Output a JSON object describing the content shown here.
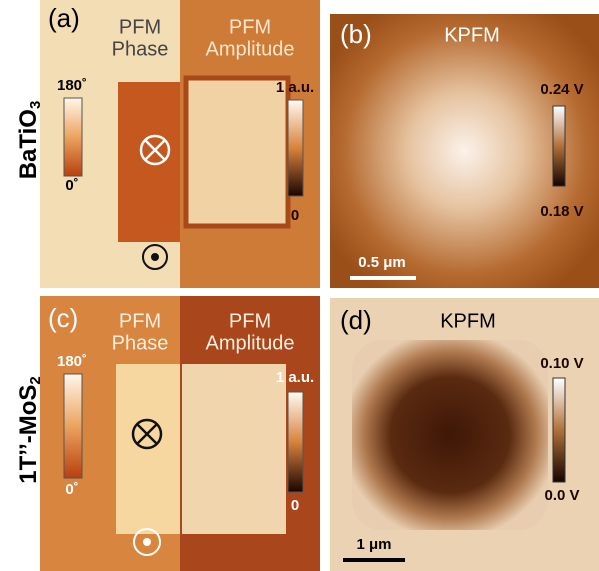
{
  "row_labels": [
    {
      "text": "BaTiO",
      "sub": "3"
    },
    {
      "text": "1T’’-MoS",
      "sub": "2"
    }
  ],
  "panels": [
    {
      "label": "(a)",
      "left_title": [
        "PFM",
        "Phase"
      ],
      "right_title": [
        "PFM",
        "Amplitude"
      ],
      "left_bar": [
        "180˚",
        "0˚"
      ],
      "right_bar": [
        "1 a.u.",
        "0"
      ]
    },
    {
      "label": "(b)",
      "title": "KPFM",
      "bar": [
        "0.24 V",
        "0.18 V"
      ],
      "scale": "0.5 μm"
    },
    {
      "label": "(c)",
      "left_title": [
        "PFM",
        "Phase"
      ],
      "right_title": [
        "PFM",
        "Amplitude"
      ],
      "left_bar": [
        "180˚",
        "0˚"
      ],
      "right_bar": [
        "1 a.u.",
        "0"
      ]
    },
    {
      "label": "(d)",
      "title": "KPFM",
      "bar": [
        "0.10 V",
        "0.0 V"
      ],
      "scale": "1 μm"
    }
  ]
}
